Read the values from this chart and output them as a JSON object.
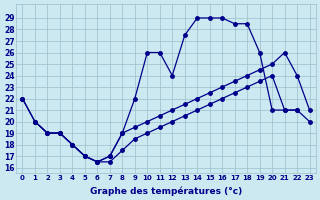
{
  "title": "Graphe des températures (°c)",
  "xlabel_hours": [
    0,
    1,
    2,
    3,
    4,
    5,
    6,
    7,
    8,
    9,
    10,
    11,
    12,
    13,
    14,
    15,
    16,
    17,
    18,
    19,
    20,
    21,
    22,
    23
  ],
  "yticks": [
    16,
    17,
    18,
    19,
    20,
    21,
    22,
    23,
    24,
    25,
    26,
    27,
    28,
    29
  ],
  "bg_color": "#cce8f0",
  "line_color": "#00008b",
  "grid_color": "#9bbfcc",
  "label_color": "#00008b",
  "line1_x": [
    0,
    1,
    2,
    3,
    4,
    5,
    6,
    7,
    8,
    9,
    10,
    11,
    12,
    13,
    14,
    15,
    16,
    17,
    18,
    19,
    20,
    21,
    22
  ],
  "line1_y": [
    22,
    20,
    19,
    19,
    18,
    17,
    16.5,
    17,
    19,
    22,
    26,
    26,
    24,
    27.5,
    29,
    29,
    29,
    28.5,
    28.5,
    26,
    21,
    21,
    21
  ],
  "line2_x": [
    0,
    1,
    2,
    3,
    4,
    5,
    6,
    7,
    8,
    9,
    10,
    11,
    12,
    13,
    14,
    15,
    16,
    17,
    18,
    19,
    20,
    21,
    22,
    23
  ],
  "line2_y": [
    22,
    20,
    19,
    19,
    18,
    17,
    16.5,
    17,
    19,
    19.5,
    20,
    20.5,
    21,
    21.5,
    22,
    22.5,
    23,
    23.5,
    24,
    24.5,
    25,
    26,
    24,
    21
  ],
  "line3_x": [
    1,
    2,
    3,
    4,
    5,
    6,
    7,
    8,
    9,
    10,
    11,
    12,
    13,
    14,
    15,
    16,
    17,
    18,
    19,
    20,
    21,
    22,
    23
  ],
  "line3_y": [
    20,
    19,
    19,
    18,
    17,
    16.5,
    16.5,
    17.5,
    18.5,
    19,
    19.5,
    20,
    20.5,
    21,
    21.5,
    22,
    22.5,
    23,
    23.5,
    24,
    21,
    21,
    20
  ]
}
